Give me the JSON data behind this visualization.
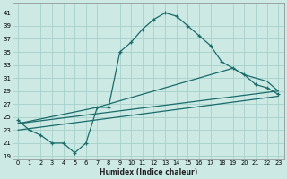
{
  "xlabel": "Humidex (Indice chaleur)",
  "x_ticks": [
    0,
    1,
    2,
    3,
    4,
    5,
    6,
    7,
    8,
    9,
    10,
    11,
    12,
    13,
    14,
    15,
    16,
    17,
    18,
    19,
    20,
    21,
    22,
    23
  ],
  "y_ticks": [
    19,
    21,
    23,
    25,
    27,
    29,
    31,
    33,
    35,
    37,
    39,
    41
  ],
  "xlim": [
    -0.5,
    23.5
  ],
  "ylim": [
    18.5,
    42.5
  ],
  "background_color": "#cce9e4",
  "grid_color": "#aad4ce",
  "line_color": "#1a6b6b",
  "curve1_x": [
    0,
    1,
    2,
    3,
    4,
    5,
    6,
    7,
    8,
    9,
    10,
    11,
    12,
    13,
    14,
    15,
    16,
    17,
    18,
    19,
    20,
    21,
    22,
    23
  ],
  "curve1_y": [
    24.5,
    23.0,
    22.2,
    21.0,
    21.0,
    19.5,
    21.0,
    26.5,
    26.5,
    35.0,
    36.5,
    38.5,
    40.0,
    41.0,
    40.5,
    39.0,
    37.5,
    36.0,
    33.5,
    32.5,
    31.5,
    30.0,
    29.5,
    28.5
  ],
  "line2_x": [
    0,
    23
  ],
  "line2_y": [
    24.0,
    29.0
  ],
  "line3_x": [
    0,
    23
  ],
  "line3_y": [
    23.0,
    28.2
  ],
  "curve4_x": [
    0,
    7,
    19,
    20,
    21,
    22,
    23
  ],
  "curve4_y": [
    24.0,
    26.5,
    32.5,
    31.5,
    31.0,
    30.5,
    29.0
  ]
}
